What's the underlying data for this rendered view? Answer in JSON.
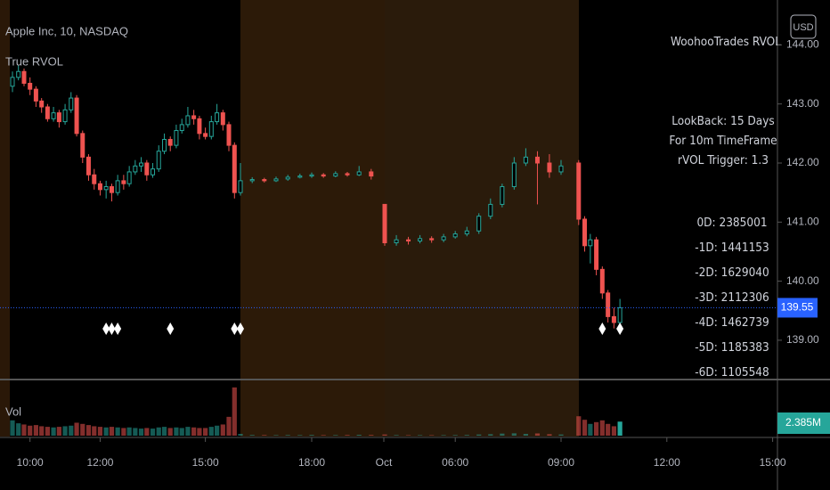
{
  "chart_data": {
    "type": "candlestick",
    "title": "Apple Inc, 10, NASDAQ",
    "indicator": "True RVOL",
    "currency": "USD",
    "volume_label": "Vol",
    "volume_last_label": "2.385M",
    "panel_title": "WoohooTrades RVOL",
    "info": [
      "LookBack: 15 Days",
      "For 10m TimeFrame",
      "rVOL Trigger: 1.3"
    ],
    "rvol": [
      "0D: 2385001",
      "-1D: 1441153",
      "-2D: 1629040",
      "-3D: 2112306",
      "-4D: 1462739",
      "-5D: 1185383",
      "-6D: 1105548"
    ],
    "up_color": "#26a69a",
    "down_color": "#ef5350",
    "last_price": 139.55,
    "last_price_label": "139.55",
    "ylim": [
      138.35,
      144.76
    ],
    "yticks": [
      {
        "value": 139,
        "label": "139.00"
      },
      {
        "value": 140,
        "label": "140.00"
      },
      {
        "value": 141,
        "label": "141.00"
      },
      {
        "value": 142,
        "label": "142.00"
      },
      {
        "value": 143,
        "label": "143.00"
      },
      {
        "value": 144,
        "label": "144.00"
      }
    ],
    "xticks": [
      {
        "value": 10,
        "label": "10:00"
      },
      {
        "value": 12,
        "label": "12:00"
      },
      {
        "value": 15,
        "label": "15:00"
      },
      {
        "value": 18,
        "label": "18:00"
      },
      {
        "value": 24,
        "label": "Oct"
      },
      {
        "value": 30,
        "label": "06:00"
      },
      {
        "value": 33,
        "label": "09:00"
      },
      {
        "value": 36,
        "label": "12:00"
      },
      {
        "value": 39,
        "label": "15:00"
      }
    ],
    "x": [
      9.5,
      9.67,
      9.83,
      10,
      10.17,
      10.33,
      10.5,
      10.67,
      10.83,
      11,
      11.17,
      11.33,
      11.5,
      11.67,
      11.83,
      12,
      12.17,
      12.33,
      12.5,
      12.67,
      12.83,
      13,
      13.17,
      13.33,
      13.5,
      13.67,
      13.83,
      14,
      14.17,
      14.33,
      14.5,
      14.67,
      14.83,
      15,
      15.17,
      15.33,
      15.5,
      15.67,
      15.83,
      16,
      16.33,
      16.67,
      17,
      17.33,
      17.67,
      18,
      18.33,
      18.67,
      19,
      19.33,
      19.67,
      28,
      28.33,
      28.67,
      29,
      29.33,
      29.67,
      30,
      30.33,
      30.67,
      31,
      31.33,
      31.67,
      32,
      32.33,
      32.67,
      33,
      33.5,
      33.67,
      33.83,
      34,
      34.17,
      34.33,
      34.5,
      34.67
    ],
    "ohlc": [
      [
        143.3,
        143.55,
        143.2,
        143.45
      ],
      [
        143.45,
        143.65,
        143.4,
        143.55
      ],
      [
        143.55,
        143.6,
        143.3,
        143.35
      ],
      [
        143.35,
        143.45,
        143.15,
        143.25
      ],
      [
        143.25,
        143.3,
        142.95,
        143.05
      ],
      [
        143.05,
        143.1,
        142.85,
        142.95
      ],
      [
        142.95,
        143,
        142.7,
        142.75
      ],
      [
        142.75,
        142.95,
        142.7,
        142.85
      ],
      [
        142.85,
        142.9,
        142.6,
        142.7
      ],
      [
        142.7,
        143,
        142.65,
        142.9
      ],
      [
        142.9,
        143.2,
        142.85,
        143.1
      ],
      [
        143.1,
        143.15,
        142.45,
        142.5
      ],
      [
        142.5,
        142.55,
        142,
        142.1
      ],
      [
        142.1,
        142.15,
        141.7,
        141.8
      ],
      [
        141.8,
        141.9,
        141.55,
        141.65
      ],
      [
        141.65,
        141.7,
        141.45,
        141.55
      ],
      [
        141.55,
        141.7,
        141.4,
        141.6
      ],
      [
        141.6,
        141.65,
        141.35,
        141.5
      ],
      [
        141.5,
        141.8,
        141.45,
        141.7
      ],
      [
        141.7,
        141.8,
        141.55,
        141.65
      ],
      [
        141.65,
        141.95,
        141.6,
        141.85
      ],
      [
        141.85,
        142.05,
        141.8,
        141.95
      ],
      [
        141.95,
        142.1,
        141.85,
        142
      ],
      [
        142,
        142.05,
        141.7,
        141.8
      ],
      [
        141.8,
        142,
        141.75,
        141.9
      ],
      [
        141.9,
        142.3,
        141.85,
        142.2
      ],
      [
        142.2,
        142.5,
        142.15,
        142.4
      ],
      [
        142.4,
        142.45,
        142.2,
        142.3
      ],
      [
        142.3,
        142.65,
        142.25,
        142.55
      ],
      [
        142.55,
        142.75,
        142.5,
        142.65
      ],
      [
        142.65,
        142.95,
        142.6,
        142.8
      ],
      [
        142.8,
        142.9,
        142.65,
        142.75
      ],
      [
        142.75,
        142.8,
        142.4,
        142.5
      ],
      [
        142.5,
        142.6,
        142.4,
        142.45
      ],
      [
        142.45,
        142.8,
        142.4,
        142.7
      ],
      [
        142.7,
        143,
        142.65,
        142.85
      ],
      [
        142.85,
        142.9,
        142.55,
        142.65
      ],
      [
        142.65,
        142.7,
        142.2,
        142.3
      ],
      [
        142.3,
        142.35,
        141.4,
        141.5
      ],
      [
        141.5,
        142,
        141.45,
        141.7
      ],
      [
        141.7,
        141.76,
        141.66,
        141.72
      ],
      [
        141.72,
        141.75,
        141.67,
        141.7
      ],
      [
        141.7,
        141.77,
        141.68,
        141.73
      ],
      [
        141.73,
        141.8,
        141.7,
        141.76
      ],
      [
        141.76,
        141.82,
        141.74,
        141.78
      ],
      [
        141.78,
        141.84,
        141.75,
        141.8
      ],
      [
        141.8,
        141.83,
        141.75,
        141.78
      ],
      [
        141.78,
        141.86,
        141.76,
        141.82
      ],
      [
        141.82,
        141.85,
        141.77,
        141.8
      ],
      [
        141.8,
        141.95,
        141.78,
        141.85
      ],
      [
        141.85,
        141.9,
        141.72,
        141.78
      ],
      [
        141.3,
        141.3,
        140.6,
        140.65
      ],
      [
        140.65,
        140.78,
        140.6,
        140.7
      ],
      [
        140.7,
        140.75,
        140.62,
        140.68
      ],
      [
        140.68,
        140.78,
        140.64,
        140.72
      ],
      [
        140.72,
        140.76,
        140.65,
        140.7
      ],
      [
        140.7,
        140.8,
        140.66,
        140.75
      ],
      [
        140.75,
        140.85,
        140.72,
        140.8
      ],
      [
        140.8,
        140.92,
        140.76,
        140.85
      ],
      [
        140.85,
        141.15,
        140.8,
        141.1
      ],
      [
        141.1,
        141.4,
        141.05,
        141.3
      ],
      [
        141.3,
        141.65,
        141.25,
        141.6
      ],
      [
        141.6,
        142.1,
        141.55,
        142
      ],
      [
        142,
        142.25,
        141.95,
        142.1
      ],
      [
        142.1,
        142.2,
        141.3,
        142
      ],
      [
        142,
        142.15,
        141.75,
        141.85
      ],
      [
        141.85,
        142.05,
        141.8,
        141.95
      ],
      [
        142,
        142.05,
        140.95,
        141.05
      ],
      [
        141.05,
        141.1,
        140.5,
        140.6
      ],
      [
        140.6,
        140.8,
        140.3,
        140.7
      ],
      [
        140.7,
        140.75,
        140.1,
        140.2
      ],
      [
        140.2,
        140.25,
        139.7,
        139.8
      ],
      [
        139.8,
        139.85,
        139.3,
        139.4
      ],
      [
        139.4,
        139.55,
        139.2,
        139.3
      ],
      [
        139.3,
        139.7,
        139.25,
        139.55
      ]
    ],
    "volume": [
      2600000,
      2100000,
      1900000,
      1700000,
      1800000,
      1600000,
      1500000,
      1400000,
      1500000,
      1600000,
      1700000,
      2200000,
      2000000,
      1800000,
      1600000,
      1500000,
      1400000,
      1500000,
      1400000,
      1300000,
      1400000,
      1300000,
      1200000,
      1300000,
      1200000,
      1400000,
      1500000,
      1300000,
      1400000,
      1300000,
      1500000,
      1400000,
      1300000,
      1300000,
      1500000,
      1700000,
      1900000,
      3200000,
      8200000,
      300000,
      120000,
      100000,
      90000,
      110000,
      100000,
      130000,
      90000,
      100000,
      110000,
      150000,
      120000,
      200000,
      100000,
      80000,
      90000,
      80000,
      90000,
      100000,
      120000,
      200000,
      250000,
      350000,
      400000,
      300000,
      380000,
      250000,
      200000,
      3300000,
      2700000,
      2000000,
      2300000,
      2600000,
      2000000,
      1600000,
      2385001
    ],
    "vlim": [
      0,
      9240000
    ],
    "signals": [
      12.17,
      12.33,
      12.5,
      14,
      15.83,
      16,
      34.17,
      34.67
    ]
  }
}
